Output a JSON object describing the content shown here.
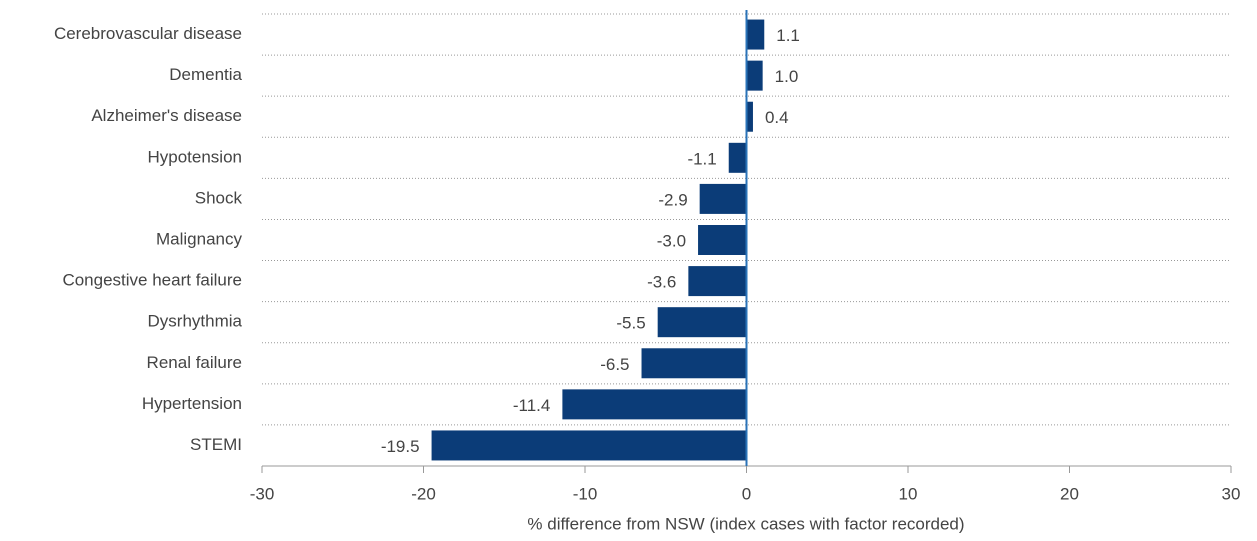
{
  "chart_data": {
    "type": "barh",
    "xlabel": "% difference from NSW (index cases with factor recorded)",
    "categories": [
      "Cerebrovascular disease",
      "Dementia",
      "Alzheimer's disease",
      "Hypotension",
      "Shock",
      "Malignancy",
      "Congestive heart failure",
      "Dysrhythmia",
      "Renal failure",
      "Hypertension",
      "STEMI"
    ],
    "values": [
      1.1,
      1.0,
      0.4,
      -1.1,
      -2.9,
      -3.0,
      -3.6,
      -5.5,
      -6.5,
      -11.4,
      -19.5
    ],
    "value_labels": [
      "1.1",
      "1.0",
      "0.4",
      "-1.1",
      "-2.9",
      "-3.0",
      "-3.6",
      "-5.5",
      "-6.5",
      "-11.4",
      "-19.5"
    ],
    "color": "#0b3c78",
    "xlim": [
      -30,
      30
    ],
    "xticks": [
      -30,
      -20,
      -10,
      0,
      10,
      20,
      30
    ]
  }
}
